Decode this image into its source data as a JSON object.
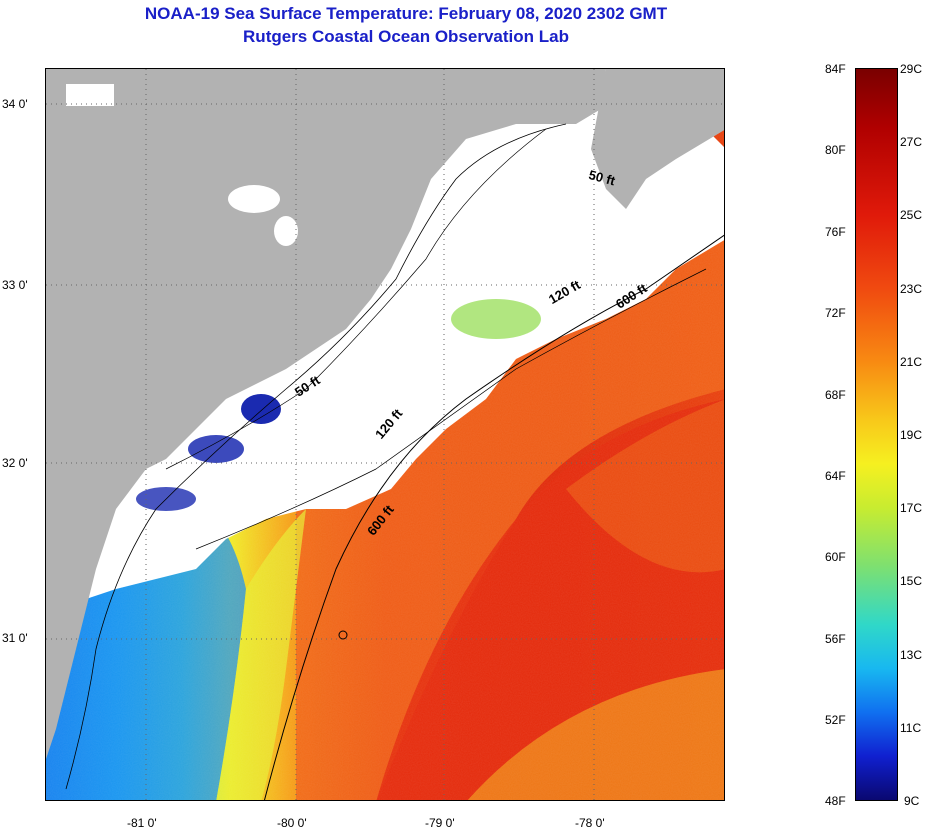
{
  "titles": {
    "line1": "NOAA-19 Sea Surface Temperature:  February 08, 2020 2302 GMT",
    "line2": "Rutgers Coastal Ocean Observation Lab"
  },
  "map": {
    "lat_labels": [
      "34 0'",
      "33 0'",
      "32 0'",
      "31 0'"
    ],
    "lon_labels": [
      "-81 0'",
      "-80 0'",
      "-79 0'",
      "-78 0'"
    ],
    "contour_labels": [
      "50 ft",
      "120 ft",
      "600 ft",
      "50 ft",
      "120 ft",
      "600 ft"
    ],
    "colors": {
      "land": "#b2b2b2",
      "cloud": "#ffffff",
      "warm": "#e8320c",
      "cool": "#1aa0ee"
    }
  },
  "colorbar": {
    "fahrenheit": [
      "84F",
      "80F",
      "76F",
      "72F",
      "68F",
      "64F",
      "60F",
      "56F",
      "52F",
      "48F"
    ],
    "celsius": [
      "29C",
      "27C",
      "25C",
      "23C",
      "21C",
      "19C",
      "17C",
      "15C",
      "13C",
      "11C",
      "9C"
    ]
  }
}
